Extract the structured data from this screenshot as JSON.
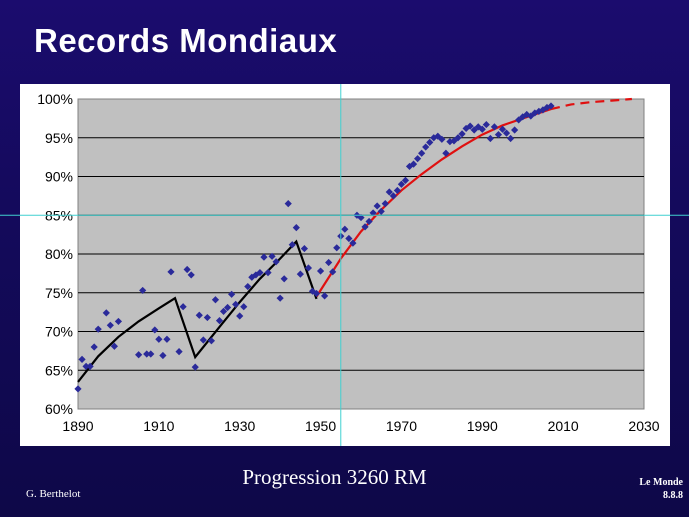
{
  "slide": {
    "title": "Records Mondiaux",
    "caption": "Progression 3260 RM",
    "author": "G. Berthelot",
    "source_line1": "Le Monde",
    "source_line2": "8.8.8"
  },
  "colors": {
    "background": "#140a5c",
    "plot": "#c0c0c0",
    "points": "#2a2a9a",
    "fit_past": "#000000",
    "fit_future": "#e01010",
    "guide": "#40d0d0"
  },
  "chart_data": {
    "type": "scatter",
    "title": "Records Mondiaux",
    "xlabel": "",
    "ylabel": "",
    "xlim": [
      1890,
      2030
    ],
    "ylim": [
      60,
      100
    ],
    "x_ticks": [
      1890,
      1910,
      1930,
      1950,
      1970,
      1990,
      2010,
      2030
    ],
    "y_ticks": [
      60,
      65,
      70,
      75,
      80,
      85,
      90,
      95,
      100
    ],
    "y_tick_labels": [
      "60%",
      "65%",
      "70%",
      "75%",
      "80%",
      "85%",
      "90%",
      "95%",
      "100%"
    ],
    "guide_x": 1955,
    "guide_y": 85,
    "series": [
      {
        "name": "records",
        "kind": "points",
        "points": [
          [
            1890,
            62.6
          ],
          [
            1891,
            66.4
          ],
          [
            1892,
            65.5
          ],
          [
            1893,
            65.5
          ],
          [
            1894,
            68
          ],
          [
            1895,
            70.3
          ],
          [
            1897,
            72.4
          ],
          [
            1898,
            70.8
          ],
          [
            1899,
            68.1
          ],
          [
            1900,
            71.3
          ],
          [
            1905,
            67
          ],
          [
            1906,
            75.3
          ],
          [
            1907,
            67.1
          ],
          [
            1908,
            67.1
          ],
          [
            1909,
            70.2
          ],
          [
            1910,
            69
          ],
          [
            1911,
            66.9
          ],
          [
            1912,
            69
          ],
          [
            1913,
            77.7
          ],
          [
            1915,
            67.4
          ],
          [
            1916,
            73.2
          ],
          [
            1917,
            78
          ],
          [
            1918,
            77.3
          ],
          [
            1919,
            65.4
          ],
          [
            1920,
            72.1
          ],
          [
            1921,
            68.9
          ],
          [
            1922,
            71.8
          ],
          [
            1923,
            68.8
          ],
          [
            1924,
            74.1
          ],
          [
            1925,
            71.4
          ],
          [
            1926,
            72.6
          ],
          [
            1927,
            73.1
          ],
          [
            1928,
            74.8
          ],
          [
            1929,
            73.5
          ],
          [
            1930,
            72
          ],
          [
            1931,
            73.2
          ],
          [
            1932,
            75.8
          ],
          [
            1933,
            77
          ],
          [
            1934,
            77.3
          ],
          [
            1935,
            77.6
          ],
          [
            1936,
            79.6
          ],
          [
            1937,
            77.6
          ],
          [
            1938,
            79.7
          ],
          [
            1939,
            79
          ],
          [
            1940,
            74.3
          ],
          [
            1941,
            76.8
          ],
          [
            1942,
            86.5
          ],
          [
            1943,
            81.2
          ],
          [
            1944,
            83.4
          ],
          [
            1945,
            77.4
          ],
          [
            1946,
            80.7
          ],
          [
            1947,
            78.2
          ],
          [
            1948,
            75.2
          ],
          [
            1949,
            74.9
          ],
          [
            1950,
            77.8
          ],
          [
            1951,
            74.6
          ],
          [
            1952,
            78.9
          ],
          [
            1953,
            77.7
          ],
          [
            1954,
            80.8
          ],
          [
            1955,
            82.3
          ],
          [
            1956,
            83.2
          ],
          [
            1957,
            82
          ],
          [
            1958,
            81.4
          ],
          [
            1959,
            85
          ],
          [
            1960,
            84.7
          ],
          [
            1961,
            83.5
          ],
          [
            1962,
            84.2
          ],
          [
            1963,
            85.3
          ],
          [
            1964,
            86.2
          ],
          [
            1965,
            85.5
          ],
          [
            1966,
            86.5
          ],
          [
            1967,
            88
          ],
          [
            1968,
            87.5
          ],
          [
            1969,
            88.2
          ],
          [
            1970,
            89
          ],
          [
            1971,
            89.5
          ],
          [
            1972,
            91.3
          ],
          [
            1973,
            91.6
          ],
          [
            1974,
            92.3
          ],
          [
            1975,
            93
          ],
          [
            1976,
            93.8
          ],
          [
            1977,
            94.4
          ],
          [
            1978,
            95
          ],
          [
            1979,
            95.2
          ],
          [
            1980,
            94.8
          ],
          [
            1981,
            93
          ],
          [
            1982,
            94.5
          ],
          [
            1983,
            94.6
          ],
          [
            1984,
            95
          ],
          [
            1985,
            95.5
          ],
          [
            1986,
            96.2
          ],
          [
            1987,
            96.5
          ],
          [
            1988,
            96
          ],
          [
            1989,
            96.4
          ],
          [
            1990,
            96.1
          ],
          [
            1991,
            96.7
          ],
          [
            1992,
            94.9
          ],
          [
            1993,
            96.4
          ],
          [
            1994,
            95.4
          ],
          [
            1995,
            96.1
          ],
          [
            1996,
            95.6
          ],
          [
            1997,
            94.9
          ],
          [
            1998,
            96
          ],
          [
            1999,
            97.3
          ],
          [
            2000,
            97.7
          ],
          [
            2001,
            98
          ],
          [
            2002,
            97.8
          ],
          [
            2003,
            98.2
          ],
          [
            2004,
            98.4
          ],
          [
            2005,
            98.6
          ],
          [
            2006,
            98.9
          ],
          [
            2007,
            99.1
          ]
        ]
      },
      {
        "name": "black fit",
        "kind": "line",
        "points": [
          [
            1890,
            63.5
          ],
          [
            1895,
            66.8
          ],
          [
            1900,
            69.3
          ],
          [
            1905,
            71.3
          ],
          [
            1910,
            73
          ],
          [
            1914,
            74.3
          ],
          [
            1919,
            66.7
          ],
          [
            1925,
            70.6
          ],
          [
            1930,
            73.8
          ],
          [
            1935,
            76.8
          ],
          [
            1940,
            79.4
          ],
          [
            1944,
            81.6
          ],
          [
            1949,
            74.2
          ]
        ]
      },
      {
        "name": "red fit",
        "kind": "line",
        "points": [
          [
            1949,
            74.5
          ],
          [
            1955,
            79.4
          ],
          [
            1960,
            82.9
          ],
          [
            1965,
            85.7
          ],
          [
            1970,
            88.2
          ],
          [
            1975,
            90.3
          ],
          [
            1980,
            92.2
          ],
          [
            1985,
            93.9
          ],
          [
            1990,
            95.4
          ],
          [
            1995,
            96.6
          ],
          [
            2000,
            97.5
          ],
          [
            2007,
            98.7
          ]
        ]
      },
      {
        "name": "red projection",
        "kind": "dashed",
        "points": [
          [
            2007,
            98.7
          ],
          [
            2012,
            99.3
          ],
          [
            2017,
            99.6
          ],
          [
            2022,
            99.8
          ],
          [
            2027,
            100
          ]
        ]
      }
    ]
  }
}
